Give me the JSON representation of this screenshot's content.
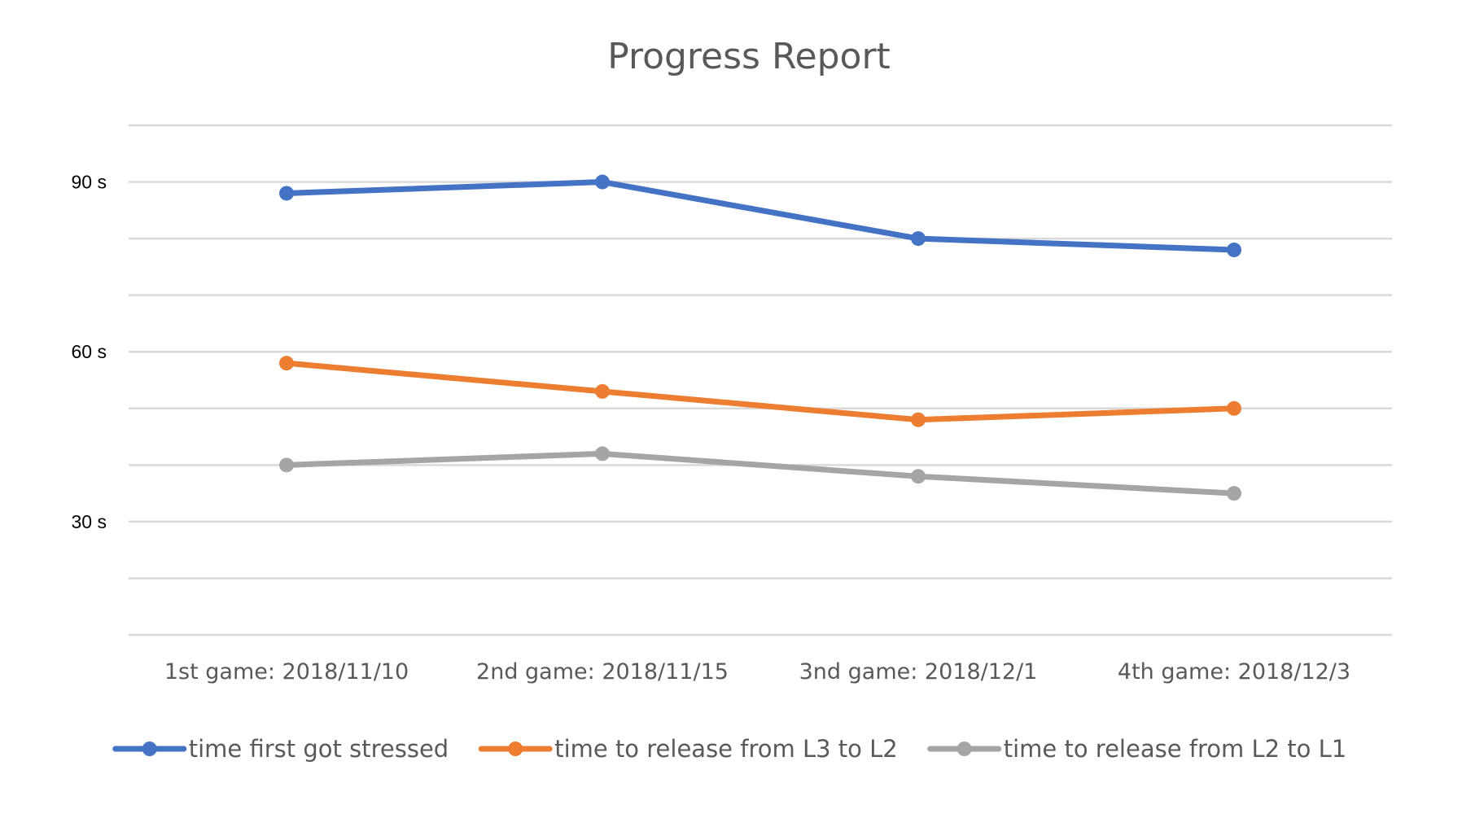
{
  "chart_data": {
    "type": "line",
    "title": "Progress Report",
    "categories": [
      "1st game: 2018/11/10",
      "2nd game: 2018/11/15",
      "3nd game: 2018/12/1",
      "4th game: 2018/12/3"
    ],
    "y_tick_values": [
      30,
      60,
      90
    ],
    "y_tick_labels": [
      "30 s",
      "60 s",
      "90 s"
    ],
    "ylim": [
      10,
      100
    ],
    "gridline_values": [
      10,
      20,
      30,
      40,
      50,
      60,
      70,
      80,
      90,
      100
    ],
    "grid": true,
    "legend_position": "bottom",
    "series": [
      {
        "name": "time first got stressed",
        "values": [
          88,
          90,
          80,
          78
        ],
        "color": "#4472C4"
      },
      {
        "name": "time to release from L3 to L2",
        "values": [
          58,
          53,
          48,
          50
        ],
        "color": "#ED7D31"
      },
      {
        "name": "time to release from L2 to L1",
        "values": [
          40,
          42,
          38,
          35
        ],
        "color": "#A5A5A5"
      }
    ],
    "gridline_color": "#D9D9D9"
  }
}
